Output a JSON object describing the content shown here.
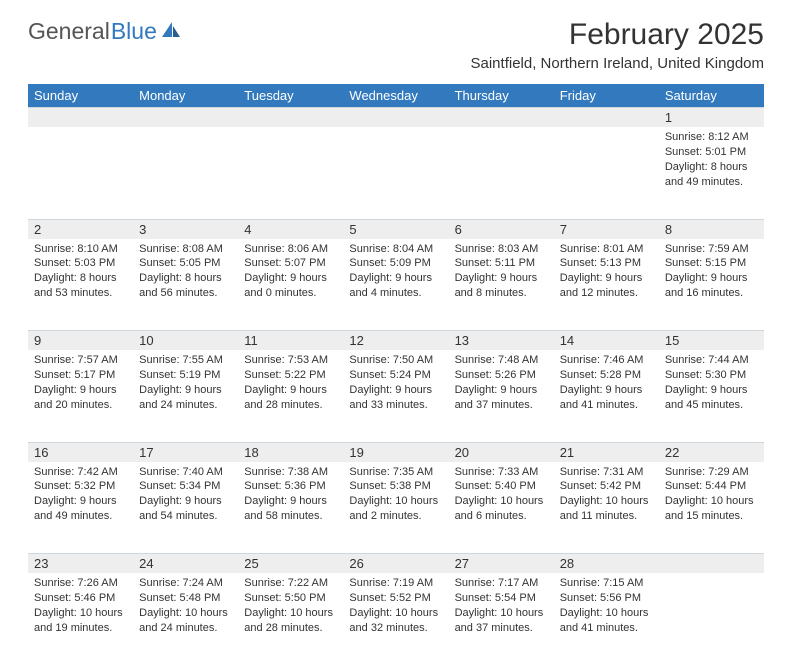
{
  "header": {
    "logo_general": "General",
    "logo_blue": "Blue",
    "month_title": "February 2025",
    "location": "Saintfield, Northern Ireland, United Kingdom"
  },
  "colors": {
    "header_bg": "#3279bd",
    "header_fg": "#ffffff",
    "daynum_bg": "#eeeeee",
    "border": "#cfd6dc",
    "text": "#333333",
    "logo_gray": "#555555",
    "logo_blue": "#3279bd"
  },
  "calendar": {
    "day_headers": [
      "Sunday",
      "Monday",
      "Tuesday",
      "Wednesday",
      "Thursday",
      "Friday",
      "Saturday"
    ],
    "weeks": [
      {
        "nums": [
          "",
          "",
          "",
          "",
          "",
          "",
          "1"
        ],
        "cells": [
          null,
          null,
          null,
          null,
          null,
          null,
          {
            "sunrise": "Sunrise: 8:12 AM",
            "sunset": "Sunset: 5:01 PM",
            "day1": "Daylight: 8 hours",
            "day2": "and 49 minutes."
          }
        ]
      },
      {
        "nums": [
          "2",
          "3",
          "4",
          "5",
          "6",
          "7",
          "8"
        ],
        "cells": [
          {
            "sunrise": "Sunrise: 8:10 AM",
            "sunset": "Sunset: 5:03 PM",
            "day1": "Daylight: 8 hours",
            "day2": "and 53 minutes."
          },
          {
            "sunrise": "Sunrise: 8:08 AM",
            "sunset": "Sunset: 5:05 PM",
            "day1": "Daylight: 8 hours",
            "day2": "and 56 minutes."
          },
          {
            "sunrise": "Sunrise: 8:06 AM",
            "sunset": "Sunset: 5:07 PM",
            "day1": "Daylight: 9 hours",
            "day2": "and 0 minutes."
          },
          {
            "sunrise": "Sunrise: 8:04 AM",
            "sunset": "Sunset: 5:09 PM",
            "day1": "Daylight: 9 hours",
            "day2": "and 4 minutes."
          },
          {
            "sunrise": "Sunrise: 8:03 AM",
            "sunset": "Sunset: 5:11 PM",
            "day1": "Daylight: 9 hours",
            "day2": "and 8 minutes."
          },
          {
            "sunrise": "Sunrise: 8:01 AM",
            "sunset": "Sunset: 5:13 PM",
            "day1": "Daylight: 9 hours",
            "day2": "and 12 minutes."
          },
          {
            "sunrise": "Sunrise: 7:59 AM",
            "sunset": "Sunset: 5:15 PM",
            "day1": "Daylight: 9 hours",
            "day2": "and 16 minutes."
          }
        ]
      },
      {
        "nums": [
          "9",
          "10",
          "11",
          "12",
          "13",
          "14",
          "15"
        ],
        "cells": [
          {
            "sunrise": "Sunrise: 7:57 AM",
            "sunset": "Sunset: 5:17 PM",
            "day1": "Daylight: 9 hours",
            "day2": "and 20 minutes."
          },
          {
            "sunrise": "Sunrise: 7:55 AM",
            "sunset": "Sunset: 5:19 PM",
            "day1": "Daylight: 9 hours",
            "day2": "and 24 minutes."
          },
          {
            "sunrise": "Sunrise: 7:53 AM",
            "sunset": "Sunset: 5:22 PM",
            "day1": "Daylight: 9 hours",
            "day2": "and 28 minutes."
          },
          {
            "sunrise": "Sunrise: 7:50 AM",
            "sunset": "Sunset: 5:24 PM",
            "day1": "Daylight: 9 hours",
            "day2": "and 33 minutes."
          },
          {
            "sunrise": "Sunrise: 7:48 AM",
            "sunset": "Sunset: 5:26 PM",
            "day1": "Daylight: 9 hours",
            "day2": "and 37 minutes."
          },
          {
            "sunrise": "Sunrise: 7:46 AM",
            "sunset": "Sunset: 5:28 PM",
            "day1": "Daylight: 9 hours",
            "day2": "and 41 minutes."
          },
          {
            "sunrise": "Sunrise: 7:44 AM",
            "sunset": "Sunset: 5:30 PM",
            "day1": "Daylight: 9 hours",
            "day2": "and 45 minutes."
          }
        ]
      },
      {
        "nums": [
          "16",
          "17",
          "18",
          "19",
          "20",
          "21",
          "22"
        ],
        "cells": [
          {
            "sunrise": "Sunrise: 7:42 AM",
            "sunset": "Sunset: 5:32 PM",
            "day1": "Daylight: 9 hours",
            "day2": "and 49 minutes."
          },
          {
            "sunrise": "Sunrise: 7:40 AM",
            "sunset": "Sunset: 5:34 PM",
            "day1": "Daylight: 9 hours",
            "day2": "and 54 minutes."
          },
          {
            "sunrise": "Sunrise: 7:38 AM",
            "sunset": "Sunset: 5:36 PM",
            "day1": "Daylight: 9 hours",
            "day2": "and 58 minutes."
          },
          {
            "sunrise": "Sunrise: 7:35 AM",
            "sunset": "Sunset: 5:38 PM",
            "day1": "Daylight: 10 hours",
            "day2": "and 2 minutes."
          },
          {
            "sunrise": "Sunrise: 7:33 AM",
            "sunset": "Sunset: 5:40 PM",
            "day1": "Daylight: 10 hours",
            "day2": "and 6 minutes."
          },
          {
            "sunrise": "Sunrise: 7:31 AM",
            "sunset": "Sunset: 5:42 PM",
            "day1": "Daylight: 10 hours",
            "day2": "and 11 minutes."
          },
          {
            "sunrise": "Sunrise: 7:29 AM",
            "sunset": "Sunset: 5:44 PM",
            "day1": "Daylight: 10 hours",
            "day2": "and 15 minutes."
          }
        ]
      },
      {
        "nums": [
          "23",
          "24",
          "25",
          "26",
          "27",
          "28",
          ""
        ],
        "cells": [
          {
            "sunrise": "Sunrise: 7:26 AM",
            "sunset": "Sunset: 5:46 PM",
            "day1": "Daylight: 10 hours",
            "day2": "and 19 minutes."
          },
          {
            "sunrise": "Sunrise: 7:24 AM",
            "sunset": "Sunset: 5:48 PM",
            "day1": "Daylight: 10 hours",
            "day2": "and 24 minutes."
          },
          {
            "sunrise": "Sunrise: 7:22 AM",
            "sunset": "Sunset: 5:50 PM",
            "day1": "Daylight: 10 hours",
            "day2": "and 28 minutes."
          },
          {
            "sunrise": "Sunrise: 7:19 AM",
            "sunset": "Sunset: 5:52 PM",
            "day1": "Daylight: 10 hours",
            "day2": "and 32 minutes."
          },
          {
            "sunrise": "Sunrise: 7:17 AM",
            "sunset": "Sunset: 5:54 PM",
            "day1": "Daylight: 10 hours",
            "day2": "and 37 minutes."
          },
          {
            "sunrise": "Sunrise: 7:15 AM",
            "sunset": "Sunset: 5:56 PM",
            "day1": "Daylight: 10 hours",
            "day2": "and 41 minutes."
          },
          null
        ]
      }
    ]
  }
}
